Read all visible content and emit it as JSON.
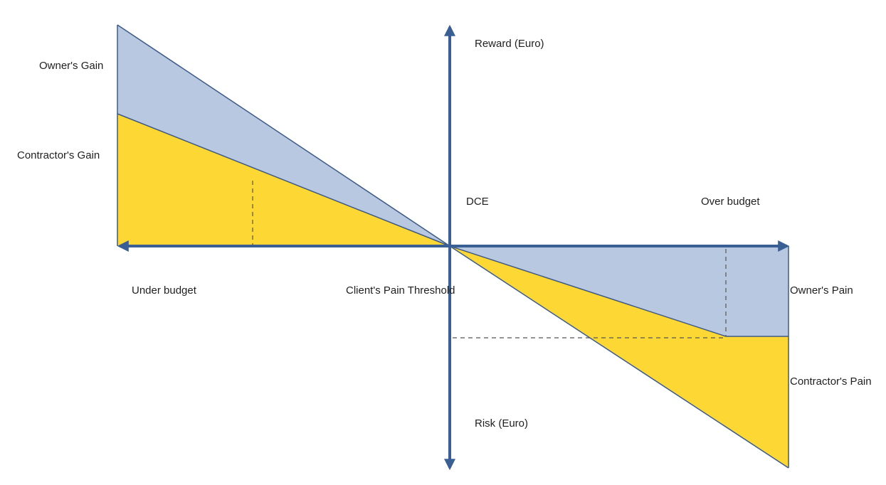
{
  "labels": {
    "reward": "Reward (Euro)",
    "risk": "Risk (Euro)",
    "dce": "DCE",
    "over_budget": "Over budget",
    "under_budget": "Under budget",
    "pain_threshold": "Client's Pain Threshold",
    "owners_gain": "Owner's Gain",
    "contractors_gain": "Contractor's Gain",
    "owners_pain": "Owner's Pain",
    "contractors_pain": "Contractor's Pain"
  },
  "colors": {
    "owner_fill": "#b8c8e1",
    "contractor_fill": "#fdd835",
    "axis": "#3a5f94",
    "edge": "#3d5a87",
    "dashed": "#555555"
  }
}
